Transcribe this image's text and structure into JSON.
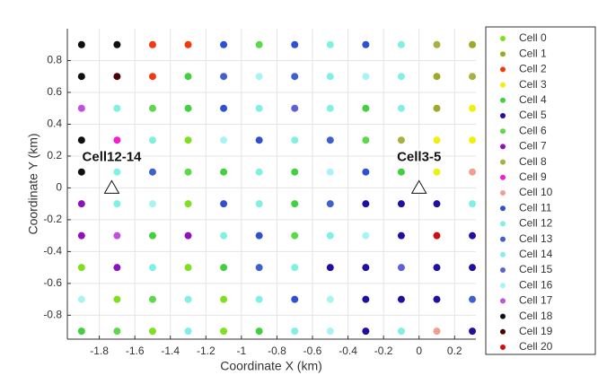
{
  "chart_data": {
    "type": "scatter",
    "xlabel": "Coordinate X (km)",
    "ylabel": "Coordinate Y (km)",
    "xlim": [
      -1.98,
      0.32
    ],
    "ylim": [
      -0.95,
      1.0
    ],
    "xticks": [
      -1.8,
      -1.6,
      -1.4,
      -1.2,
      -1,
      -0.8,
      -0.6,
      -0.4,
      -0.2,
      0,
      0.2
    ],
    "yticks": [
      -0.8,
      -0.6,
      -0.4,
      -0.2,
      0,
      0.2,
      0.4,
      0.6,
      0.8
    ],
    "grid": true,
    "legend": "outside-right",
    "annotations": [
      {
        "text": "Cell12-14",
        "x": -1.73,
        "y": 0.0
      },
      {
        "text": "Cell3-5",
        "x": 0.0,
        "y": 0.0
      }
    ],
    "series": [
      {
        "name": "Cell 0",
        "color": "#7fe01f",
        "x": [
          -1.3,
          -1.3,
          -1.9,
          -1.3,
          -1.7,
          -1.1,
          -1.5,
          -1.1
        ],
        "y": [
          0.3,
          -0.1,
          -0.5,
          -0.5,
          -0.7,
          -0.7,
          -0.9,
          -0.9
        ]
      },
      {
        "name": "Cell 1",
        "color": "#a0a82a",
        "x": [
          0.3,
          0.1,
          0.1
        ],
        "y": [
          0.9,
          0.7,
          0.5
        ]
      },
      {
        "name": "Cell 2",
        "color": "#f03a10",
        "x": [
          -1.5,
          -1.3,
          -1.5
        ],
        "y": [
          0.9,
          0.9,
          0.7
        ]
      },
      {
        "name": "Cell 3",
        "color": "#f0f010",
        "x": [
          0.3,
          0.1,
          0.3,
          0.1
        ],
        "y": [
          0.5,
          0.3,
          0.3,
          0.1
        ]
      },
      {
        "name": "Cell 4",
        "color": "#40d040",
        "x": [
          -1.3,
          -1.3,
          -0.3,
          -1.1,
          -0.7,
          -0.1,
          -0.7,
          -1.5,
          -1.1,
          -1.9,
          -0.9
        ],
        "y": [
          0.7,
          0.5,
          0.5,
          0.1,
          0.1,
          0.1,
          -0.1,
          -0.3,
          -0.5,
          -0.9,
          -0.9
        ]
      },
      {
        "name": "Cell 5",
        "color": "#2010a0",
        "x": [
          -0.3,
          -0.1,
          0.1,
          -0.1,
          0.3,
          -0.5,
          -0.3,
          0.1,
          0.3,
          -0.3,
          -0.1,
          0.1,
          -0.3,
          0.3
        ],
        "y": [
          -0.1,
          -0.1,
          -0.1,
          -0.3,
          -0.3,
          -0.5,
          -0.5,
          -0.5,
          -0.5,
          -0.7,
          -0.7,
          -0.7,
          -0.9,
          -0.9
        ]
      },
      {
        "name": "Cell 6",
        "color": "#5cd84a",
        "x": [
          -0.9,
          -1.5,
          -0.3,
          -1.3,
          -0.7,
          -1.5,
          -1.7
        ],
        "y": [
          0.9,
          0.5,
          0.3,
          0.1,
          -0.3,
          -0.7,
          -0.9
        ]
      },
      {
        "name": "Cell 7",
        "color": "#9010c0",
        "x": [
          -1.9,
          -1.9,
          -1.3,
          -1.7
        ],
        "y": [
          -0.1,
          -0.3,
          -0.3,
          -0.5
        ]
      },
      {
        "name": "Cell 8",
        "color": "#a8b040",
        "x": [
          0.1,
          0.3,
          -0.1
        ],
        "y": [
          0.9,
          0.7,
          0.3
        ]
      },
      {
        "name": "Cell 9",
        "color": "#f020d0",
        "x": [
          -1.7
        ],
        "y": [
          0.3
        ]
      },
      {
        "name": "Cell 10",
        "color": "#f0a090",
        "x": [
          0.3,
          0.1
        ],
        "y": [
          0.1,
          -0.9
        ]
      },
      {
        "name": "Cell 11",
        "color": "#3050d0",
        "x": [
          -1.1,
          -0.7,
          -0.3,
          -1.1,
          -0.9,
          -0.3,
          -1.1,
          -0.9,
          -0.7
        ],
        "y": [
          0.9,
          0.9,
          0.9,
          0.5,
          0.3,
          0.1,
          -0.1,
          -0.3,
          -0.7
        ]
      },
      {
        "name": "Cell 12",
        "color": "#80f0e0",
        "x": [
          -0.5,
          -0.1,
          -0.1,
          -1.7,
          -0.5,
          -1.5,
          -0.7,
          -0.9,
          -1.7,
          -0.9,
          0.3,
          -1.1,
          -0.7,
          -1.3,
          -0.7,
          -0.1
        ],
        "y": [
          0.9,
          0.9,
          0.7,
          0.5,
          0.5,
          0.3,
          0.3,
          0.1,
          -0.1,
          -0.1,
          -0.1,
          -0.3,
          -0.5,
          -0.7,
          -0.9,
          -0.9
        ]
      },
      {
        "name": "Cell 13",
        "color": "#4060d0",
        "x": [
          -1.1,
          -0.7,
          -0.5,
          -1.5,
          -0.5,
          -0.9,
          0.3
        ],
        "y": [
          0.7,
          0.7,
          0.3,
          0.1,
          -0.1,
          -0.5,
          -0.7
        ]
      },
      {
        "name": "Cell 14",
        "color": "#7ff0e8",
        "x": [
          -0.5,
          -0.9,
          -0.1,
          -1.7,
          -0.5,
          -1.5,
          -0.9,
          -1.3
        ],
        "y": [
          0.7,
          0.5,
          0.5,
          0.1,
          -0.3,
          -0.5,
          -0.7,
          -0.9
        ]
      },
      {
        "name": "Cell 15",
        "color": "#6060d8",
        "x": [
          -0.7,
          -0.1
        ],
        "y": [
          0.5,
          -0.5
        ]
      },
      {
        "name": "Cell 16",
        "color": "#a8f4f4",
        "x": [
          -0.9,
          -0.3,
          -1.1,
          -0.5,
          -1.5,
          -0.3,
          -1.9,
          -0.5,
          -0.5
        ],
        "y": [
          0.7,
          0.7,
          0.3,
          0.1,
          -0.1,
          -0.3,
          -0.7,
          -0.7,
          -0.9
        ]
      },
      {
        "name": "Cell 17",
        "color": "#c050e0",
        "x": [
          -1.9,
          -1.7
        ],
        "y": [
          0.5,
          -0.3
        ]
      },
      {
        "name": "Cell 18",
        "color": "#101010",
        "x": [
          -1.9,
          -1.7,
          -1.9,
          -1.9,
          -1.9
        ],
        "y": [
          0.9,
          0.9,
          0.7,
          0.3,
          0.1
        ]
      },
      {
        "name": "Cell 19",
        "color": "#500000",
        "x": [
          -1.7
        ],
        "y": [
          0.7
        ]
      },
      {
        "name": "Cell 20",
        "color": "#d01010",
        "x": [
          0.1
        ],
        "y": [
          -0.3
        ]
      }
    ]
  }
}
